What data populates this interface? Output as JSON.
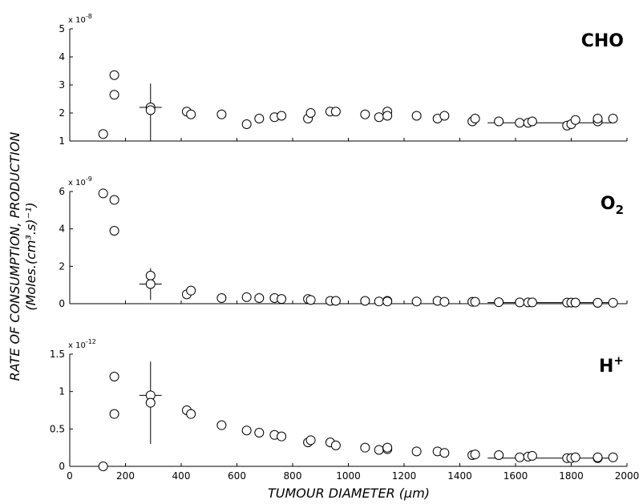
{
  "chart_data": {
    "type": "scatter",
    "xlabel": "TUMOUR DIAMETER (μm)",
    "ylabel_line1": "RATE OF CONSUMPTION, PRODUCTION",
    "ylabel_line2": "(Moles.(cm³.s)⁻¹)",
    "xlim": [
      0,
      2000
    ],
    "x_ticks": [
      "0",
      "200",
      "400",
      "600",
      "800",
      "1000",
      "1200",
      "1400",
      "1600",
      "1800",
      "2000"
    ],
    "panels": [
      {
        "label_main": "CHO",
        "label_sub": "",
        "label_sup": "",
        "multiplier_base": "x 10",
        "multiplier_exp": "-8",
        "ylim": [
          1,
          5
        ],
        "y_ticks": [
          "1",
          "2",
          "3",
          "4",
          "5"
        ],
        "x": [
          120,
          160,
          160,
          290,
          290,
          420,
          435,
          545,
          635,
          680,
          735,
          760,
          855,
          865,
          935,
          955,
          1060,
          1110,
          1140,
          1140,
          1245,
          1320,
          1345,
          1445,
          1455,
          1540,
          1615,
          1645,
          1660,
          1785,
          1800,
          1815,
          1895,
          1895,
          1950
        ],
        "y": [
          1.25,
          3.35,
          2.65,
          2.2,
          2.1,
          2.05,
          1.95,
          1.95,
          1.6,
          1.8,
          1.85,
          1.9,
          1.8,
          2.0,
          2.05,
          2.05,
          1.95,
          1.85,
          2.05,
          1.9,
          1.9,
          1.8,
          1.9,
          1.7,
          1.8,
          1.7,
          1.65,
          1.65,
          1.7,
          1.55,
          1.6,
          1.75,
          1.7,
          1.8,
          1.8
        ],
        "errorbars": [
          {
            "x": 290,
            "y": 2.2,
            "xerr": 40,
            "y_low": 1.0,
            "y_high": 3.05
          },
          {
            "x": 1725,
            "y": 1.65,
            "xerr": 225,
            "y_low": 1.65,
            "y_high": 1.65
          }
        ]
      },
      {
        "label_main": "O",
        "label_sub": "2",
        "label_sup": "",
        "multiplier_base": "x 10",
        "multiplier_exp": "-9",
        "ylim": [
          0,
          6
        ],
        "y_ticks": [
          "0",
          "2",
          "4",
          "6"
        ],
        "x": [
          120,
          160,
          160,
          290,
          290,
          420,
          435,
          545,
          635,
          680,
          735,
          760,
          855,
          865,
          935,
          955,
          1060,
          1110,
          1140,
          1140,
          1245,
          1320,
          1345,
          1445,
          1455,
          1540,
          1615,
          1645,
          1660,
          1785,
          1800,
          1815,
          1895,
          1895,
          1950
        ],
        "y": [
          5.9,
          5.55,
          3.9,
          1.5,
          1.05,
          0.5,
          0.7,
          0.3,
          0.35,
          0.3,
          0.3,
          0.25,
          0.25,
          0.2,
          0.15,
          0.15,
          0.15,
          0.12,
          0.15,
          0.12,
          0.12,
          0.15,
          0.1,
          0.1,
          0.1,
          0.08,
          0.07,
          0.07,
          0.07,
          0.06,
          0.06,
          0.06,
          0.05,
          0.05,
          0.05
        ],
        "errorbars": [
          {
            "x": 290,
            "y": 1.05,
            "xerr": 40,
            "y_low": 0.2,
            "y_high": 1.9
          },
          {
            "x": 1725,
            "y": 0.06,
            "xerr": 225,
            "y_low": 0.06,
            "y_high": 0.06
          }
        ]
      },
      {
        "label_main": "H",
        "label_sub": "",
        "label_sup": "+",
        "multiplier_base": "x 10",
        "multiplier_exp": "-12",
        "ylim": [
          0,
          1.5
        ],
        "y_ticks": [
          "0",
          "0.5",
          "1",
          "1.5"
        ],
        "x": [
          120,
          160,
          160,
          290,
          290,
          420,
          435,
          545,
          635,
          680,
          735,
          760,
          855,
          865,
          935,
          955,
          1060,
          1110,
          1140,
          1140,
          1245,
          1320,
          1345,
          1445,
          1455,
          1540,
          1615,
          1645,
          1660,
          1785,
          1800,
          1815,
          1895,
          1895,
          1950
        ],
        "y": [
          0.0,
          1.2,
          0.7,
          0.95,
          0.85,
          0.75,
          0.7,
          0.55,
          0.48,
          0.45,
          0.42,
          0.4,
          0.32,
          0.35,
          0.32,
          0.28,
          0.25,
          0.22,
          0.23,
          0.25,
          0.2,
          0.2,
          0.18,
          0.15,
          0.16,
          0.15,
          0.12,
          0.13,
          0.14,
          0.11,
          0.11,
          0.12,
          0.11,
          0.12,
          0.12
        ],
        "errorbars": [
          {
            "x": 290,
            "y": 0.95,
            "xerr": 40,
            "y_low": 0.3,
            "y_high": 1.4
          },
          {
            "x": 1725,
            "y": 0.11,
            "xerr": 225,
            "y_low": 0.11,
            "y_high": 0.11
          }
        ]
      }
    ]
  }
}
